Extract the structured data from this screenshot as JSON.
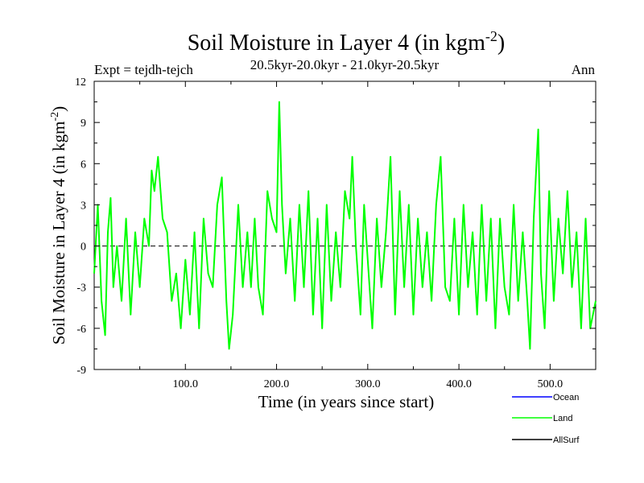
{
  "chart_data": {
    "type": "line",
    "title": "Soil Moisture in Layer 4 (in kgm",
    "title_sup": "-2",
    "title_close": ")",
    "subtitle": "20.5kyr-20.0kyr - 21.0kyr-20.5kyr",
    "left_label": "Expt = tejdh-tejch",
    "right_label": "Ann",
    "xlabel": "Time (in years since start)",
    "ylabel": "Soil Moisture in Layer 4 (in kgm",
    "ylabel_sup": "-2",
    "ylabel_close": ")",
    "xlim": [
      0,
      550
    ],
    "ylim": [
      -9,
      12
    ],
    "x_ticks": [
      100,
      200,
      300,
      400,
      500
    ],
    "x_tick_labels": [
      "100.0",
      "200.0",
      "300.0",
      "400.0",
      "500.0"
    ],
    "y_ticks": [
      -9,
      -6,
      -3,
      0,
      3,
      6,
      9,
      12
    ],
    "y_tick_labels": [
      "-9",
      "-6",
      "-3",
      "0",
      "3",
      "6",
      "9",
      "12"
    ],
    "zero_line": true,
    "legend": [
      {
        "name": "Ocean",
        "color": "#0000ff"
      },
      {
        "name": "Land",
        "color": "#00ff00"
      },
      {
        "name": "AllSurf",
        "color": "#000000"
      }
    ],
    "series": [
      {
        "name": "Land",
        "color": "#00ff00",
        "x": [
          0,
          4,
          8,
          12,
          15,
          18,
          21,
          25,
          30,
          35,
          40,
          45,
          50,
          55,
          60,
          63,
          66,
          70,
          75,
          80,
          85,
          90,
          95,
          100,
          105,
          110,
          115,
          120,
          125,
          130,
          135,
          140,
          145,
          148,
          152,
          158,
          163,
          168,
          172,
          176,
          180,
          185,
          190,
          195,
          200,
          203,
          206,
          210,
          215,
          220,
          225,
          230,
          235,
          240,
          245,
          250,
          255,
          260,
          265,
          270,
          275,
          280,
          283,
          287,
          292,
          296,
          300,
          305,
          310,
          315,
          320,
          325,
          330,
          335,
          340,
          345,
          350,
          355,
          360,
          365,
          370,
          375,
          380,
          385,
          390,
          395,
          400,
          405,
          410,
          415,
          420,
          425,
          430,
          435,
          440,
          445,
          450,
          455,
          460,
          465,
          470,
          475,
          478,
          482,
          487,
          490,
          494,
          499,
          504,
          509,
          514,
          519,
          524,
          529,
          534,
          539,
          544,
          550
        ],
        "values": [
          -2,
          3,
          -4,
          -6.5,
          1,
          3.5,
          -3,
          0,
          -4,
          2,
          -5,
          1,
          -3,
          2,
          0,
          5.5,
          4,
          6.5,
          2,
          1,
          -4,
          -2,
          -6,
          -1,
          -5,
          1,
          -6,
          2,
          -2,
          -3,
          3,
          5,
          -4,
          -7.5,
          -5,
          3,
          -3,
          1,
          -3,
          2,
          -3,
          -5,
          4,
          2,
          1,
          10.5,
          3,
          -2,
          2,
          -4,
          3,
          -3,
          4,
          -5,
          2,
          -6,
          3,
          -4,
          1,
          -3,
          4,
          2,
          6.5,
          0,
          -5,
          3,
          -1,
          -6,
          2,
          -3,
          1,
          6.5,
          -5,
          4,
          -3,
          3,
          -5,
          2,
          -3,
          1,
          -4,
          3,
          6.5,
          -3,
          -4,
          2,
          -5,
          3,
          -3,
          1,
          -5,
          3,
          -4,
          2,
          -6,
          2,
          -3,
          -5,
          3,
          -4,
          1,
          -4,
          -7.5,
          2,
          8.5,
          -2,
          -6,
          4,
          -4,
          2,
          -2,
          4,
          -3,
          1,
          -6,
          2,
          -6,
          -4
        ]
      },
      {
        "name": "Ocean",
        "color": "#0000ff",
        "x": [],
        "values": []
      },
      {
        "name": "AllSurf",
        "color": "#000000",
        "x": [],
        "values": []
      }
    ]
  }
}
